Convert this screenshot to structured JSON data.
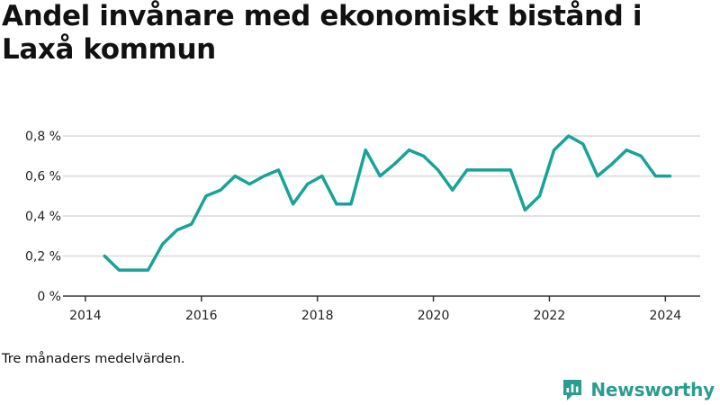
{
  "title": "Andel invånare med ekonomiskt bistånd i Laxå kommun",
  "footnote": "Tre månaders medelvärden.",
  "brand": {
    "name": "Newsworthy",
    "icon": "bar-chart-speech-bubble-icon",
    "color": "#2a9d8f"
  },
  "chart_data": {
    "type": "line",
    "title": "Andel invånare med ekonomiskt bistånd i Laxå kommun",
    "xlabel": "",
    "ylabel": "",
    "xlim": [
      2013.8,
      2024.6
    ],
    "ylim": [
      0,
      0.85
    ],
    "x_ticks": [
      2014,
      2016,
      2018,
      2020,
      2022,
      2024
    ],
    "x_tick_labels": [
      "2014",
      "2016",
      "2018",
      "2020",
      "2022",
      "2024"
    ],
    "y_ticks": [
      0,
      0.2,
      0.4,
      0.6,
      0.8
    ],
    "y_tick_labels": [
      "0 %",
      "0,2 %",
      "0,4 %",
      "0,6 %",
      "0,8 %"
    ],
    "grid": "horizontal",
    "legend": "none",
    "series": [
      {
        "color": "#17a398",
        "x": [
          2014.33,
          2014.58,
          2014.83,
          2015.08,
          2015.33,
          2015.58,
          2015.83,
          2016.08,
          2016.33,
          2016.58,
          2016.83,
          2017.08,
          2017.33,
          2017.58,
          2017.83,
          2018.08,
          2018.33,
          2018.58,
          2018.83,
          2019.08,
          2019.33,
          2019.58,
          2019.83,
          2020.08,
          2020.33,
          2020.58,
          2020.83,
          2021.08,
          2021.33,
          2021.58,
          2021.83,
          2022.08,
          2022.33,
          2022.58,
          2022.83,
          2023.08,
          2023.33,
          2023.58,
          2023.83,
          2024.08
        ],
        "y": [
          0.2,
          0.13,
          0.13,
          0.13,
          0.26,
          0.33,
          0.36,
          0.5,
          0.53,
          0.6,
          0.56,
          0.6,
          0.63,
          0.46,
          0.56,
          0.6,
          0.46,
          0.46,
          0.73,
          0.6,
          0.66,
          0.73,
          0.7,
          0.63,
          0.53,
          0.63,
          0.63,
          0.63,
          0.63,
          0.43,
          0.5,
          0.73,
          0.8,
          0.76,
          0.6,
          0.66,
          0.73,
          0.7,
          0.6,
          0.6
        ]
      }
    ]
  }
}
